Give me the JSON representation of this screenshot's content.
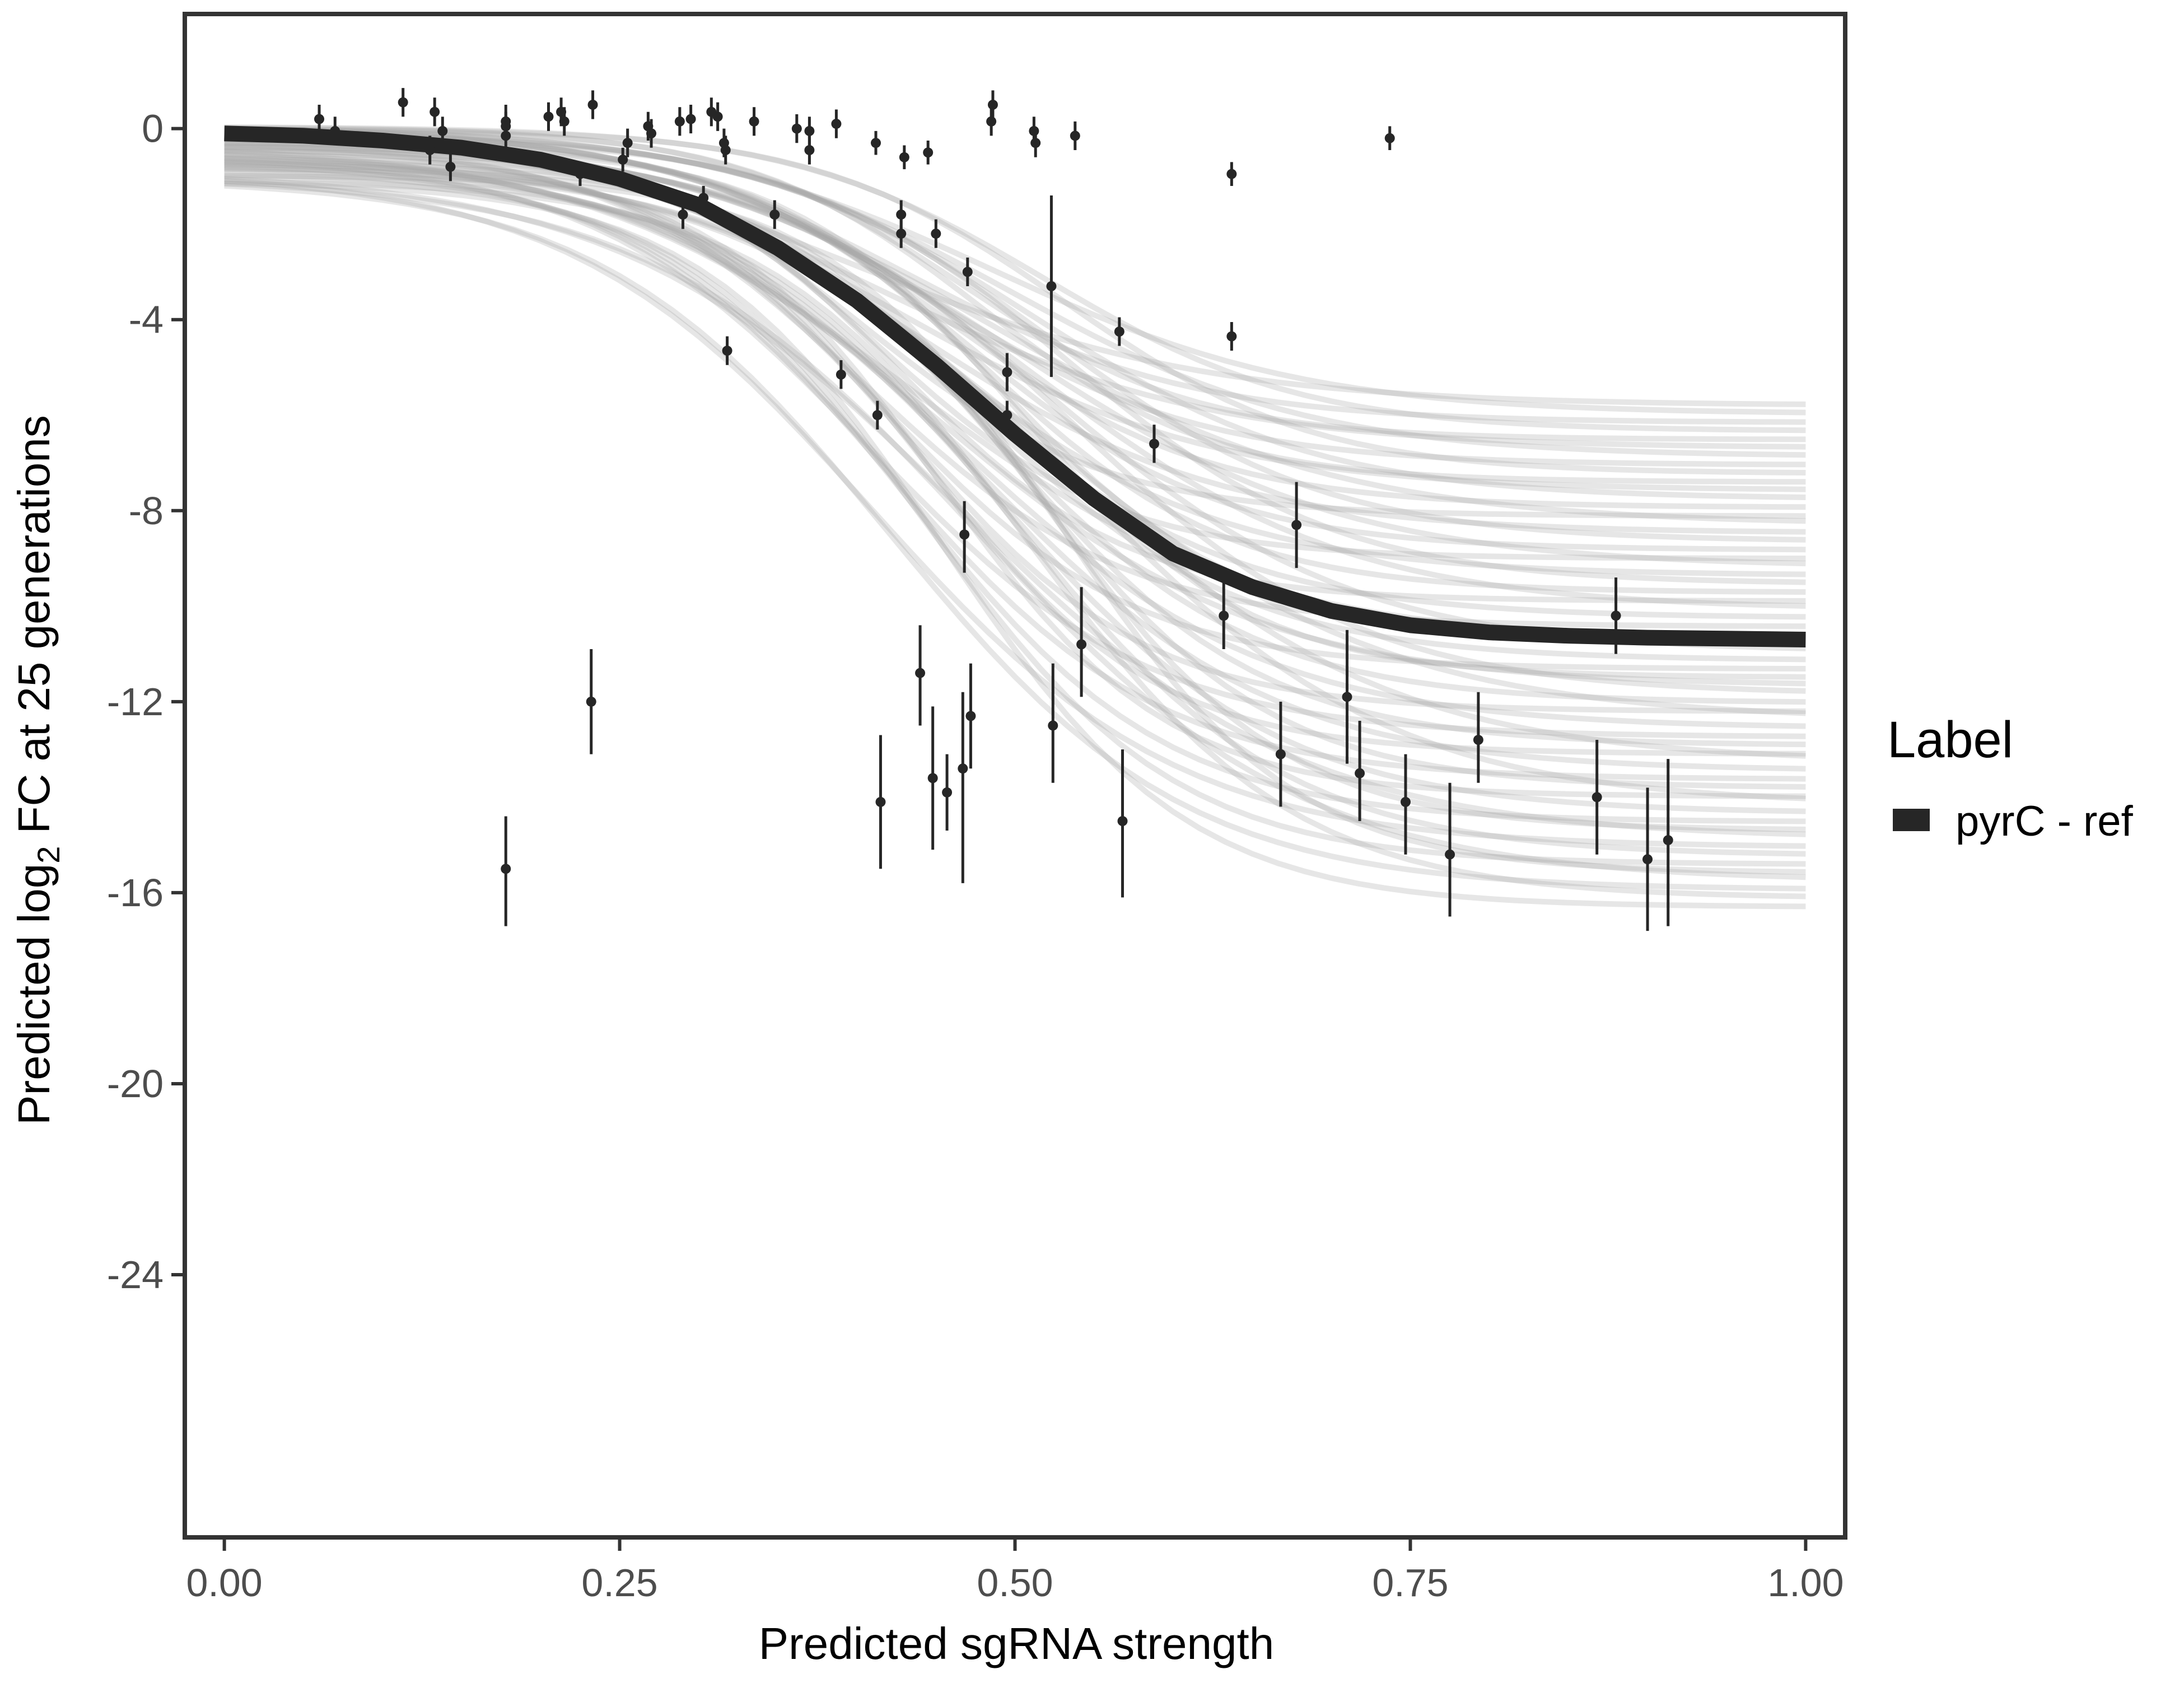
{
  "chart_data": {
    "type": "scatter",
    "title": "",
    "xlabel": "Predicted sgRNA strength",
    "ylabel_parts": {
      "before": "Predicted  log",
      "subscript": "2",
      "after": " FC at 25 generations"
    },
    "xlim": [
      -0.025,
      1.025
    ],
    "ylim": [
      -29.5,
      2.4
    ],
    "x_ticks": [
      {
        "value": 0.0,
        "label": "0.00"
      },
      {
        "value": 0.25,
        "label": "0.25"
      },
      {
        "value": 0.5,
        "label": "0.50"
      },
      {
        "value": 0.75,
        "label": "0.75"
      },
      {
        "value": 1.0,
        "label": "1.00"
      }
    ],
    "y_ticks": [
      {
        "value": 0,
        "label": "0"
      },
      {
        "value": -4,
        "label": "-4"
      },
      {
        "value": -8,
        "label": "-8"
      },
      {
        "value": -12,
        "label": "-12"
      },
      {
        "value": -16,
        "label": "-16"
      },
      {
        "value": -20,
        "label": "-20"
      },
      {
        "value": -24,
        "label": "-24"
      }
    ],
    "grid": false,
    "legend": {
      "title": "Label",
      "placement": "right",
      "entries": [
        {
          "label": "pyrC - ref",
          "color": "#262626"
        }
      ]
    },
    "colors": {
      "fit": "#262626",
      "points": "#262626",
      "draws": "#a6a6a6",
      "frame": "#333333"
    },
    "fit_curve": {
      "name": "pyrC - ref",
      "x": [
        0.0,
        0.05,
        0.1,
        0.15,
        0.2,
        0.25,
        0.3,
        0.35,
        0.4,
        0.45,
        0.5,
        0.55,
        0.6,
        0.65,
        0.7,
        0.75,
        0.8,
        0.85,
        0.9,
        0.95,
        1.0
      ],
      "y": [
        -0.1,
        -0.15,
        -0.25,
        -0.4,
        -0.65,
        -1.05,
        -1.6,
        -2.5,
        -3.6,
        -4.95,
        -6.4,
        -7.75,
        -8.9,
        -9.6,
        -10.1,
        -10.4,
        -10.55,
        -10.62,
        -10.66,
        -10.68,
        -10.7
      ]
    },
    "posterior_draws": {
      "description_color_only": true,
      "count": 60,
      "y_at_0_range": [
        0.05,
        -1.1
      ],
      "y_at_1_range": [
        -5.8,
        -16.3
      ]
    },
    "points": [
      {
        "x": 0.06,
        "y": 0.2,
        "lo": -0.1,
        "hi": 0.5
      },
      {
        "x": 0.07,
        "y": -0.05,
        "lo": -0.35,
        "hi": 0.25
      },
      {
        "x": 0.113,
        "y": 0.55,
        "lo": 0.25,
        "hi": 0.85
      },
      {
        "x": 0.13,
        "y": -0.45,
        "lo": -0.75,
        "hi": -0.15
      },
      {
        "x": 0.133,
        "y": 0.35,
        "lo": 0.05,
        "hi": 0.65
      },
      {
        "x": 0.138,
        "y": -0.05,
        "lo": -0.35,
        "hi": 0.25
      },
      {
        "x": 0.143,
        "y": -0.8,
        "lo": -1.1,
        "hi": -0.5
      },
      {
        "x": 0.178,
        "y": 0.15,
        "lo": -0.2,
        "hi": 0.5
      },
      {
        "x": 0.178,
        "y": 0.05,
        "lo": -0.25,
        "hi": 0.35
      },
      {
        "x": 0.178,
        "y": -0.15,
        "lo": -0.45,
        "hi": 0.15
      },
      {
        "x": 0.178,
        "y": -15.5,
        "lo": -16.7,
        "hi": -14.4
      },
      {
        "x": 0.205,
        "y": 0.25,
        "lo": -0.05,
        "hi": 0.55
      },
      {
        "x": 0.213,
        "y": 0.35,
        "lo": 0.05,
        "hi": 0.65
      },
      {
        "x": 0.215,
        "y": 0.15,
        "lo": -0.15,
        "hi": 0.45
      },
      {
        "x": 0.225,
        "y": -0.95,
        "lo": -1.2,
        "hi": -0.7
      },
      {
        "x": 0.232,
        "y": -12.0,
        "lo": -13.1,
        "hi": -10.9
      },
      {
        "x": 0.233,
        "y": 0.5,
        "lo": 0.2,
        "hi": 0.8
      },
      {
        "x": 0.252,
        "y": -0.65,
        "lo": -0.9,
        "hi": -0.4
      },
      {
        "x": 0.255,
        "y": -0.3,
        "lo": -0.6,
        "hi": 0.0
      },
      {
        "x": 0.268,
        "y": 0.05,
        "lo": -0.25,
        "hi": 0.35
      },
      {
        "x": 0.27,
        "y": -0.1,
        "lo": -0.4,
        "hi": 0.2
      },
      {
        "x": 0.288,
        "y": 0.15,
        "lo": -0.15,
        "hi": 0.45
      },
      {
        "x": 0.29,
        "y": -1.8,
        "lo": -2.1,
        "hi": -1.5
      },
      {
        "x": 0.295,
        "y": 0.2,
        "lo": -0.1,
        "hi": 0.5
      },
      {
        "x": 0.303,
        "y": -1.45,
        "lo": -1.7,
        "hi": -1.2
      },
      {
        "x": 0.308,
        "y": 0.35,
        "lo": 0.05,
        "hi": 0.65
      },
      {
        "x": 0.312,
        "y": 0.25,
        "lo": -0.05,
        "hi": 0.55
      },
      {
        "x": 0.316,
        "y": -0.3,
        "lo": -0.6,
        "hi": 0.0
      },
      {
        "x": 0.317,
        "y": -0.45,
        "lo": -0.75,
        "hi": -0.15
      },
      {
        "x": 0.318,
        "y": -4.65,
        "lo": -4.95,
        "hi": -4.35
      },
      {
        "x": 0.335,
        "y": 0.15,
        "lo": -0.15,
        "hi": 0.45
      },
      {
        "x": 0.348,
        "y": -1.8,
        "lo": -2.1,
        "hi": -1.5
      },
      {
        "x": 0.362,
        "y": 0.0,
        "lo": -0.3,
        "hi": 0.3
      },
      {
        "x": 0.37,
        "y": -0.45,
        "lo": -0.75,
        "hi": -0.15
      },
      {
        "x": 0.37,
        "y": -0.05,
        "lo": -0.35,
        "hi": 0.25
      },
      {
        "x": 0.387,
        "y": 0.1,
        "lo": -0.2,
        "hi": 0.4
      },
      {
        "x": 0.39,
        "y": -5.15,
        "lo": -5.45,
        "hi": -4.85
      },
      {
        "x": 0.412,
        "y": -0.3,
        "lo": -0.55,
        "hi": -0.05
      },
      {
        "x": 0.413,
        "y": -6.0,
        "lo": -6.3,
        "hi": -5.7
      },
      {
        "x": 0.415,
        "y": -14.1,
        "lo": -15.5,
        "hi": -12.7
      },
      {
        "x": 0.428,
        "y": -1.8,
        "lo": -2.1,
        "hi": -1.5
      },
      {
        "x": 0.428,
        "y": -2.2,
        "lo": -2.5,
        "hi": -1.9
      },
      {
        "x": 0.43,
        "y": -0.6,
        "lo": -0.85,
        "hi": -0.35
      },
      {
        "x": 0.44,
        "y": -11.4,
        "lo": -12.5,
        "hi": -10.4
      },
      {
        "x": 0.445,
        "y": -0.5,
        "lo": -0.75,
        "hi": -0.25
      },
      {
        "x": 0.448,
        "y": -13.6,
        "lo": -15.1,
        "hi": -12.1
      },
      {
        "x": 0.45,
        "y": -2.2,
        "lo": -2.5,
        "hi": -1.9
      },
      {
        "x": 0.457,
        "y": -13.9,
        "lo": -14.7,
        "hi": -13.1
      },
      {
        "x": 0.467,
        "y": -13.4,
        "lo": -15.8,
        "hi": -11.8
      },
      {
        "x": 0.468,
        "y": -8.5,
        "lo": -9.3,
        "hi": -7.8
      },
      {
        "x": 0.47,
        "y": -3.0,
        "lo": -3.3,
        "hi": -2.7
      },
      {
        "x": 0.472,
        "y": -12.3,
        "lo": -13.4,
        "hi": -11.2
      },
      {
        "x": 0.485,
        "y": 0.15,
        "lo": -0.15,
        "hi": 0.45
      },
      {
        "x": 0.486,
        "y": 0.5,
        "lo": 0.2,
        "hi": 0.8
      },
      {
        "x": 0.495,
        "y": -5.1,
        "lo": -5.5,
        "hi": -4.7
      },
      {
        "x": 0.495,
        "y": -6.0,
        "lo": -6.3,
        "hi": -5.7
      },
      {
        "x": 0.512,
        "y": -0.05,
        "lo": -0.35,
        "hi": 0.25
      },
      {
        "x": 0.513,
        "y": -0.3,
        "lo": -0.6,
        "hi": 0.0
      },
      {
        "x": 0.523,
        "y": -3.3,
        "lo": -5.2,
        "hi": -1.4
      },
      {
        "x": 0.524,
        "y": -12.5,
        "lo": -13.7,
        "hi": -11.2
      },
      {
        "x": 0.538,
        "y": -0.15,
        "lo": -0.45,
        "hi": 0.15
      },
      {
        "x": 0.542,
        "y": -10.8,
        "lo": -11.9,
        "hi": -9.6
      },
      {
        "x": 0.566,
        "y": -4.25,
        "lo": -4.55,
        "hi": -3.95
      },
      {
        "x": 0.568,
        "y": -14.5,
        "lo": -16.1,
        "hi": -13.0
      },
      {
        "x": 0.588,
        "y": -6.6,
        "lo": -7.0,
        "hi": -6.2
      },
      {
        "x": 0.632,
        "y": -10.2,
        "lo": -10.9,
        "hi": -9.5
      },
      {
        "x": 0.637,
        "y": -0.95,
        "lo": -1.2,
        "hi": -0.7
      },
      {
        "x": 0.637,
        "y": -4.35,
        "lo": -4.65,
        "hi": -4.05
      },
      {
        "x": 0.668,
        "y": -13.1,
        "lo": -14.2,
        "hi": -12.0
      },
      {
        "x": 0.678,
        "y": -8.3,
        "lo": -9.2,
        "hi": -7.4
      },
      {
        "x": 0.71,
        "y": -11.9,
        "lo": -13.3,
        "hi": -10.5
      },
      {
        "x": 0.718,
        "y": -13.5,
        "lo": -14.5,
        "hi": -12.4
      },
      {
        "x": 0.737,
        "y": -0.2,
        "lo": -0.45,
        "hi": 0.05
      },
      {
        "x": 0.747,
        "y": -14.1,
        "lo": -15.2,
        "hi": -13.1
      },
      {
        "x": 0.775,
        "y": -15.2,
        "lo": -16.5,
        "hi": -13.7
      },
      {
        "x": 0.793,
        "y": -12.8,
        "lo": -13.7,
        "hi": -11.8
      },
      {
        "x": 0.868,
        "y": -14.0,
        "lo": -15.2,
        "hi": -12.8
      },
      {
        "x": 0.88,
        "y": -10.2,
        "lo": -11.0,
        "hi": -9.4
      },
      {
        "x": 0.9,
        "y": -15.3,
        "lo": -16.8,
        "hi": -13.8
      },
      {
        "x": 0.913,
        "y": -14.9,
        "lo": -16.7,
        "hi": -13.2
      }
    ]
  }
}
